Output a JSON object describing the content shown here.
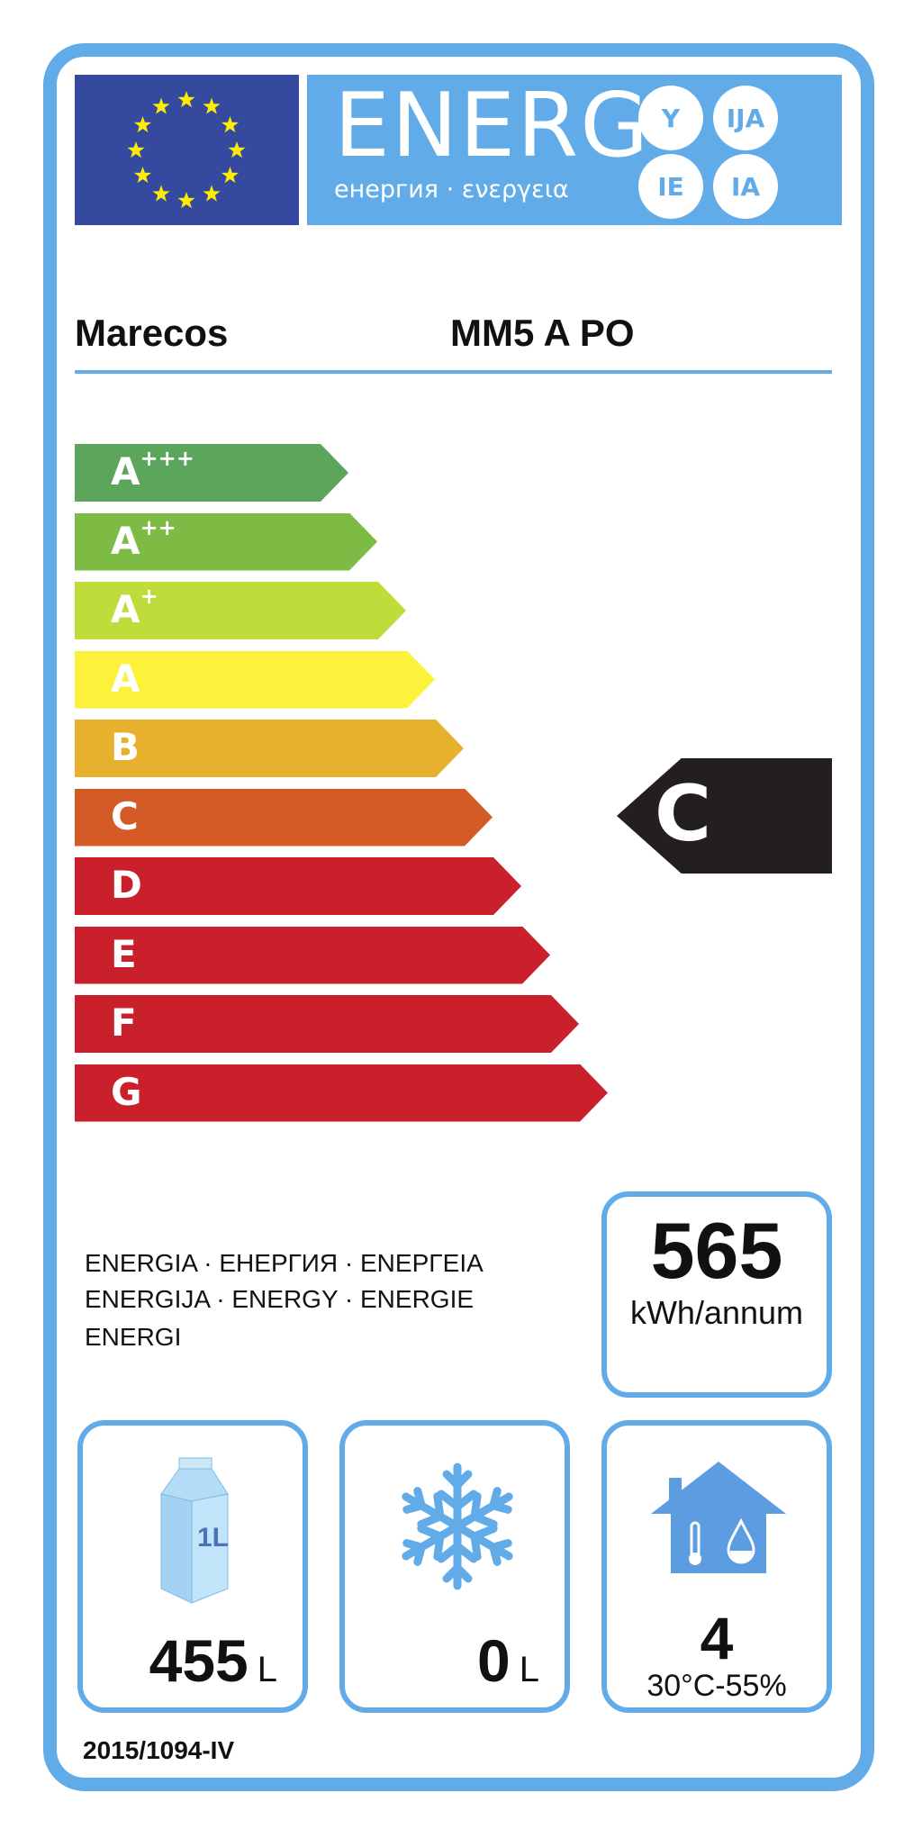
{
  "header": {
    "energy_word": "ENERG",
    "energy_subtitle": "енергия · ενεργεια",
    "suffixes": [
      "Y",
      "IJA",
      "IE",
      "IA"
    ]
  },
  "supplier": "Marecos",
  "model": "MM5 A PO",
  "scale": [
    {
      "letter": "A",
      "plus": "+++",
      "color": "#5ba65a"
    },
    {
      "letter": "A",
      "plus": "++",
      "color": "#7dbb45"
    },
    {
      "letter": "A",
      "plus": "+",
      "color": "#bedc3a"
    },
    {
      "letter": "A",
      "plus": "",
      "color": "#fcf13b"
    },
    {
      "letter": "B",
      "plus": "",
      "color": "#e7b12e"
    },
    {
      "letter": "C",
      "plus": "",
      "color": "#d45b25"
    },
    {
      "letter": "D",
      "plus": "",
      "color": "#c9202b"
    },
    {
      "letter": "E",
      "plus": "",
      "color": "#c9202b"
    },
    {
      "letter": "F",
      "plus": "",
      "color": "#c9202b"
    },
    {
      "letter": "G",
      "plus": "",
      "color": "#c9202b"
    }
  ],
  "rating": {
    "class": "C",
    "color": "#231f20"
  },
  "energy_text": [
    "ENERGIA · ЕНЕРГИЯ · ΕΝΕΡΓΕΙΑ",
    "ENERGIJA · ENERGY · ENERGIE",
    "ENERGI"
  ],
  "consumption": {
    "value": "565",
    "unit": "kWh/annum"
  },
  "fresh_volume": {
    "icon": "milk-carton-icon",
    "carton_label": "1L",
    "value": "455",
    "unit": "L"
  },
  "frozen_volume": {
    "icon": "snowflake-icon",
    "value": "0",
    "unit": "L"
  },
  "climate": {
    "icon": "house-climate-icon",
    "class": "4",
    "conditions": "30°C-55%"
  },
  "regulation": "2015/1094-IV",
  "colors": {
    "frame": "#62abe9",
    "eu_blue": "#354a9e",
    "star": "#ffed00"
  }
}
